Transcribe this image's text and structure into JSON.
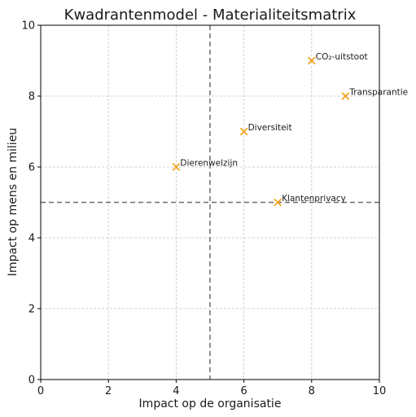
{
  "chart_data": {
    "type": "scatter",
    "title": "Kwadrantenmodel - Materialiteitsmatrix",
    "xlabel": "Impact op de organisatie",
    "ylabel": "Impact op mens en milieu",
    "xlim": [
      0,
      10
    ],
    "ylim": [
      0,
      10
    ],
    "xticks": [
      0,
      2,
      4,
      6,
      8,
      10
    ],
    "yticks": [
      0,
      2,
      4,
      6,
      8,
      10
    ],
    "grid": true,
    "marker": "x",
    "marker_color": "#f5a623",
    "threshold_x": 5,
    "threshold_y": 5,
    "points": [
      {
        "label": "CO₂-uitstoot",
        "x": 8,
        "y": 9
      },
      {
        "label": "Transparantie",
        "x": 9,
        "y": 8
      },
      {
        "label": "Diversiteit",
        "x": 6,
        "y": 7
      },
      {
        "label": "Dierenwelzijn",
        "x": 4,
        "y": 6
      },
      {
        "label": "Klantenprivacy",
        "x": 7,
        "y": 5
      }
    ]
  }
}
